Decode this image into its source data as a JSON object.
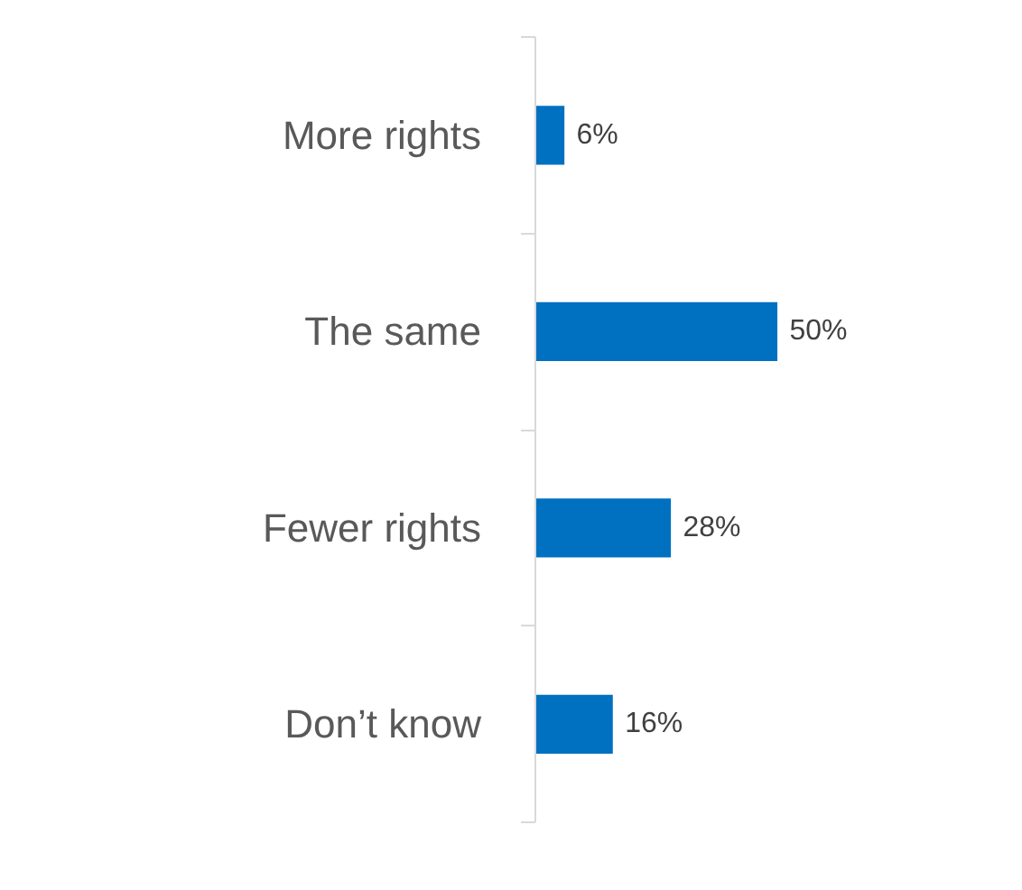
{
  "chart_data": {
    "type": "bar",
    "orientation": "horizontal",
    "categories": [
      "More rights",
      "The same",
      "Fewer rights",
      "Don’t know"
    ],
    "values": [
      6,
      50,
      28,
      16
    ],
    "value_labels": [
      "6%",
      "50%",
      "28%",
      "16%"
    ],
    "color": "#0070c0",
    "grid": false
  }
}
